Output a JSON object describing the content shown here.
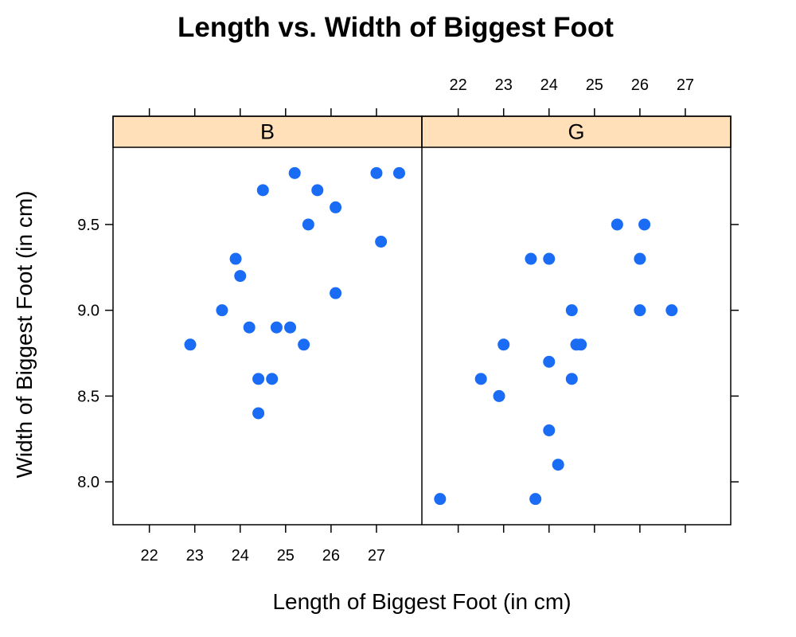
{
  "chart_data": {
    "type": "scatter",
    "title": "Length vs. Width of Biggest Foot",
    "xlabel": "Length of Biggest Foot (in cm)",
    "ylabel": "Width of Biggest Foot (in cm)",
    "xlim": [
      21.2,
      28.0
    ],
    "ylim": [
      7.75,
      9.95
    ],
    "x_ticks": [
      "22",
      "23",
      "24",
      "25",
      "26",
      "27"
    ],
    "y_ticks": [
      "8.0",
      "8.5",
      "9.0",
      "9.5"
    ],
    "grid": false,
    "point_color": "#1a6cf5",
    "strip_color": "#ffe0b8",
    "panels": [
      {
        "label": "B",
        "points": [
          {
            "x": 22.9,
            "y": 8.8
          },
          {
            "x": 23.6,
            "y": 9.0
          },
          {
            "x": 23.9,
            "y": 9.3
          },
          {
            "x": 24.0,
            "y": 9.2
          },
          {
            "x": 24.2,
            "y": 8.9
          },
          {
            "x": 24.4,
            "y": 8.6
          },
          {
            "x": 24.4,
            "y": 8.4
          },
          {
            "x": 24.5,
            "y": 9.7
          },
          {
            "x": 24.7,
            "y": 8.6
          },
          {
            "x": 24.8,
            "y": 8.9
          },
          {
            "x": 25.1,
            "y": 8.9
          },
          {
            "x": 25.2,
            "y": 9.8
          },
          {
            "x": 25.4,
            "y": 8.8
          },
          {
            "x": 25.5,
            "y": 9.5
          },
          {
            "x": 25.7,
            "y": 9.7
          },
          {
            "x": 26.1,
            "y": 9.6
          },
          {
            "x": 26.1,
            "y": 9.1
          },
          {
            "x": 27.0,
            "y": 9.8
          },
          {
            "x": 27.1,
            "y": 9.4
          },
          {
            "x": 27.5,
            "y": 9.8
          }
        ]
      },
      {
        "label": "G",
        "points": [
          {
            "x": 21.6,
            "y": 7.9
          },
          {
            "x": 22.5,
            "y": 8.6
          },
          {
            "x": 22.9,
            "y": 8.5
          },
          {
            "x": 23.0,
            "y": 8.8
          },
          {
            "x": 23.6,
            "y": 9.3
          },
          {
            "x": 23.7,
            "y": 7.9
          },
          {
            "x": 24.0,
            "y": 9.3
          },
          {
            "x": 24.0,
            "y": 8.7
          },
          {
            "x": 24.0,
            "y": 8.3
          },
          {
            "x": 24.2,
            "y": 8.1
          },
          {
            "x": 24.5,
            "y": 9.0
          },
          {
            "x": 24.5,
            "y": 8.6
          },
          {
            "x": 24.6,
            "y": 8.8
          },
          {
            "x": 24.7,
            "y": 8.8
          },
          {
            "x": 25.5,
            "y": 9.5
          },
          {
            "x": 26.0,
            "y": 9.3
          },
          {
            "x": 26.0,
            "y": 9.0
          },
          {
            "x": 26.1,
            "y": 9.5
          },
          {
            "x": 26.7,
            "y": 9.0
          }
        ]
      }
    ]
  }
}
